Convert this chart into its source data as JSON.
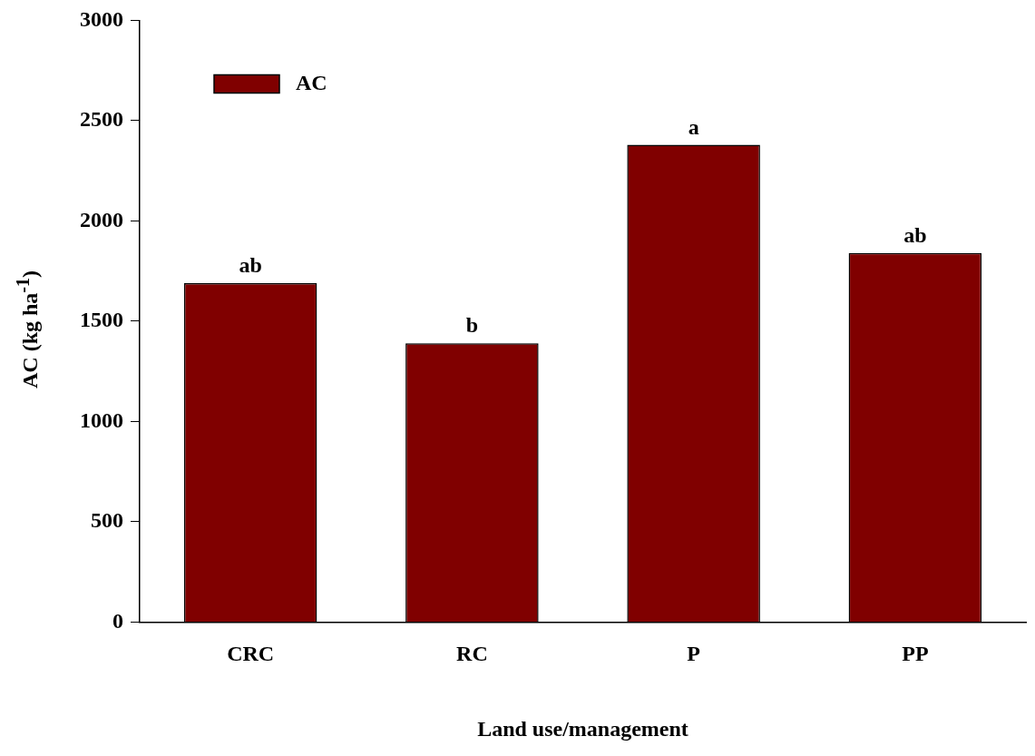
{
  "chart_data": {
    "type": "bar",
    "categories": [
      "CRC",
      "RC",
      "P",
      "PP"
    ],
    "series": [
      {
        "name": "AC",
        "color": "#800000",
        "values": [
          1690,
          1390,
          2380,
          1840
        ]
      }
    ],
    "xlabel": "Land use/management",
    "ylabel": "AC (kg ha$^{-1}$)",
    "ylim": [
      0,
      3000
    ],
    "yticks": [
      0,
      500,
      1000,
      1500,
      2000,
      2500,
      3000
    ],
    "grid": false,
    "legend": "top left",
    "annotations": [
      {
        "text": "ab",
        "x": "CRC",
        "y": 1690
      },
      {
        "text": "b",
        "x": "RC",
        "y": 1390
      },
      {
        "text": "a",
        "x": "P",
        "y": 2380
      },
      {
        "text": "ab",
        "x": "PP",
        "y": 1840
      }
    ]
  }
}
